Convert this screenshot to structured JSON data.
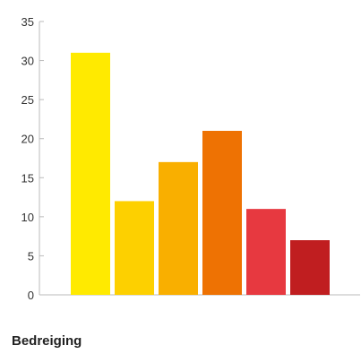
{
  "chart_data": {
    "type": "bar",
    "title": "Bedreiging",
    "categories": [
      "",
      "",
      "",
      "",
      "",
      ""
    ],
    "values": [
      31,
      12,
      17,
      21,
      11,
      7
    ],
    "colors": [
      "#ffea00",
      "#fdd000",
      "#f9af00",
      "#ee7203",
      "#e73940",
      "#c01e20"
    ],
    "ylim": [
      0,
      35
    ],
    "yticks": [
      0,
      5,
      10,
      15,
      20,
      25,
      30,
      35
    ],
    "grid": false,
    "legend": "none"
  }
}
